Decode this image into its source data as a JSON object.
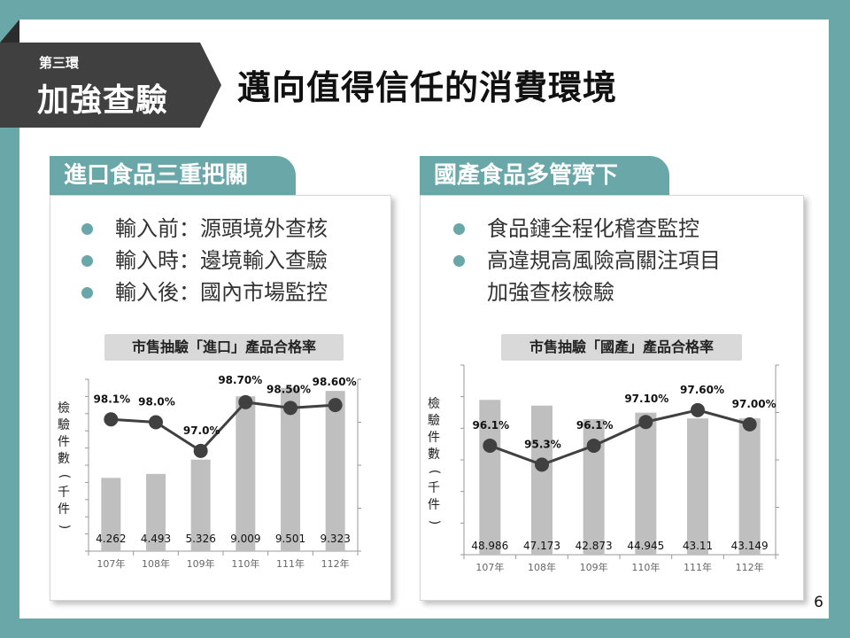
{
  "header": {
    "badge_sub": "第三環",
    "badge_main": "加強查驗",
    "title": "邁向值得信任的消費環境"
  },
  "left": {
    "tab_label": "進口食品三重把關",
    "bullets": [
      {
        "text": "輸入前：源頭境外查核",
        "dot": true
      },
      {
        "text": "輸入時：邊境輸入查驗",
        "dot": true
      },
      {
        "text": "輸入後：國內市場監控",
        "dot": true
      }
    ],
    "chart_title": "市售抽驗「進口」產品合格率",
    "ylabel_chars": [
      "檢",
      "驗",
      "件",
      "數",
      "(",
      "千",
      "件",
      ")"
    ]
  },
  "right": {
    "tab_label": "國產食品多管齊下",
    "bullets": [
      {
        "text": "食品鏈全程化稽查監控",
        "dot": true
      },
      {
        "text": "高違規高風險高關注項目",
        "dot": true
      },
      {
        "text": "加強查核檢驗",
        "dot": false
      }
    ],
    "chart_title": "市售抽驗「國產」產品合格率",
    "ylabel_chars": [
      "檢",
      "驗",
      "件",
      "數",
      "(",
      "千",
      "件",
      ")"
    ]
  },
  "page_number": "6",
  "colors": {
    "accent": "#6aa7a9",
    "bar": "#bfbfbf",
    "line": "#404040",
    "badge": "#404040"
  },
  "chart_data": [
    {
      "type": "bar",
      "title": "市售抽驗「進口」產品合格率",
      "ylabel": "檢驗件數(千件)",
      "categories": [
        "107年",
        "108年",
        "109年",
        "110年",
        "111年",
        "112年"
      ],
      "series": [
        {
          "name": "檢驗件數",
          "type": "bar",
          "values": [
            4.262,
            4.493,
            5.326,
            9.009,
            9.501,
            9.323
          ],
          "labels": [
            "4.262",
            "4.493",
            "5.326",
            "9.009",
            "9.501",
            "9.323"
          ]
        },
        {
          "name": "合格率",
          "type": "line",
          "values": [
            98.1,
            98.0,
            97.0,
            98.7,
            98.5,
            98.6
          ],
          "labels": [
            "98.1%",
            "98.0%",
            "97.0%",
            "98.70%",
            "98.50%",
            "98.60%"
          ]
        }
      ],
      "bar_ylim": [
        0,
        10
      ],
      "line_ylim": [
        93.5,
        99.5
      ],
      "grid": false
    },
    {
      "type": "bar",
      "title": "市售抽驗「國產」產品合格率",
      "ylabel": "檢驗件數(千件)",
      "categories": [
        "107年",
        "108年",
        "109年",
        "110年",
        "111年",
        "112年"
      ],
      "series": [
        {
          "name": "檢驗件數",
          "type": "bar",
          "values": [
            48.986,
            47.173,
            42.873,
            44.945,
            43.11,
            43.149
          ],
          "labels": [
            "48.986",
            "47.173",
            "42.873",
            "44.945",
            "43.11",
            "43.149"
          ]
        },
        {
          "name": "合格率",
          "type": "line",
          "values": [
            96.1,
            95.3,
            96.1,
            97.1,
            97.6,
            97.0
          ],
          "labels": [
            "96.1%",
            "95.3%",
            "96.1%",
            "97.10%",
            "97.60%",
            "97.00%"
          ]
        }
      ],
      "bar_ylim": [
        0,
        60
      ],
      "line_ylim": [
        91.5,
        99.5
      ],
      "grid": false
    }
  ]
}
